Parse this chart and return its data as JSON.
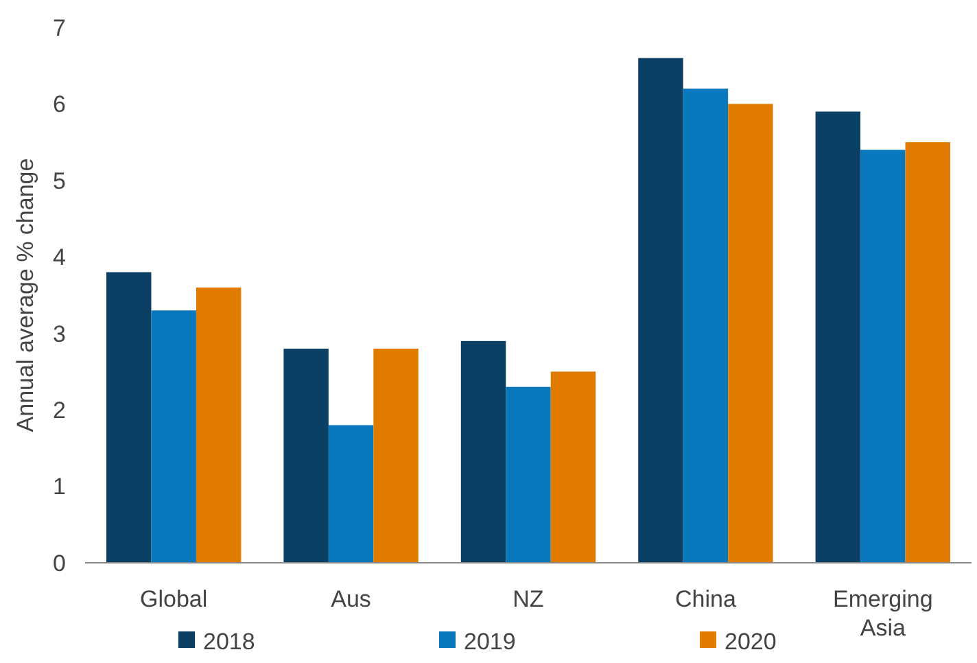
{
  "chart_data": {
    "type": "bar",
    "ylabel": "Annual average % change",
    "categories": [
      "Global",
      "Aus",
      "NZ",
      "China",
      "Emerging Asia"
    ],
    "series": [
      {
        "name": "2018",
        "color": "#0b3f63",
        "values": [
          3.8,
          2.8,
          2.9,
          6.6,
          5.9
        ]
      },
      {
        "name": "2019",
        "color": "#0a78bd",
        "values": [
          3.3,
          1.8,
          2.3,
          6.2,
          5.4
        ]
      },
      {
        "name": "2020",
        "color": "#e07b00",
        "values": [
          3.6,
          2.8,
          2.5,
          6.0,
          5.5
        ]
      }
    ],
    "ylim": [
      0,
      7
    ],
    "yticks": [
      0,
      1,
      2,
      3,
      4,
      5,
      6,
      7
    ],
    "legend": "bottom"
  }
}
